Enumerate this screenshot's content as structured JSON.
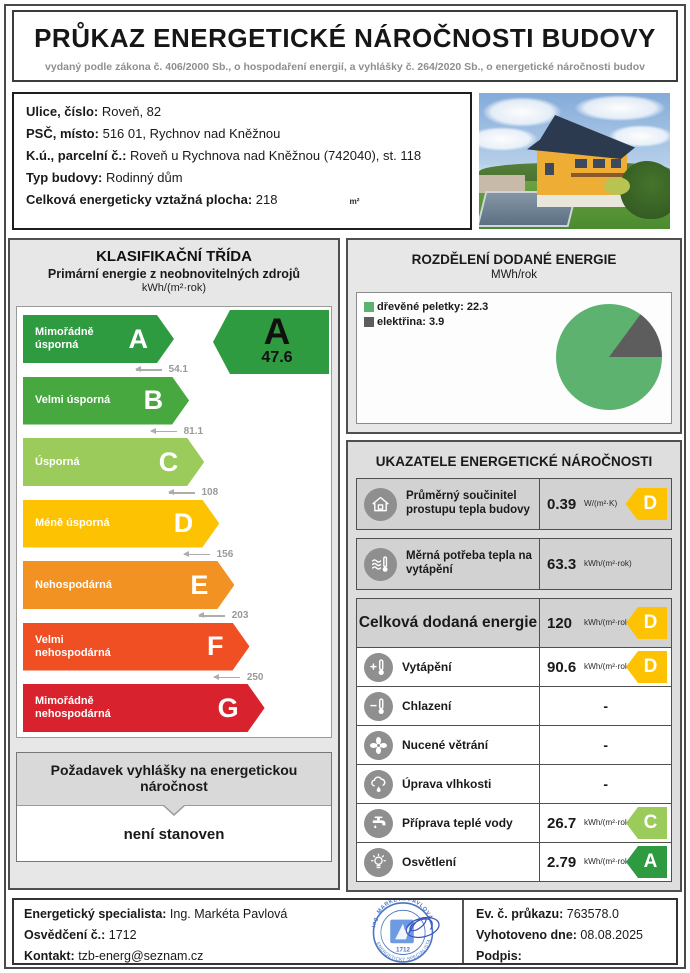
{
  "header": {
    "title": "PRŮKAZ ENERGETICKÉ NÁROČNOSTI BUDOVY",
    "subtitle": "vydaný podle zákona č. 406/2000 Sb., o hospodaření energií, a vyhlášky č. 264/2020 Sb., o energetické náročnosti budov"
  },
  "building": {
    "street_label": "Ulice, číslo:",
    "street_value": "Roveň, 82",
    "city_label": "PSČ, místo:",
    "city_value": "516 01, Rychnov nad Kněžnou",
    "parcel_label": "K.ú., parcelní č.:",
    "parcel_value": "Roveň u Rychnova nad Kněžnou (742040), st. 118",
    "type_label": "Typ budovy:",
    "type_value": "Rodinný dům",
    "area_label": "Celková energeticky vztažná plocha:",
    "area_value": "218",
    "area_unit": "m²"
  },
  "classification": {
    "title": "KLASIFIKAČNÍ TŘÍDA",
    "subtitle": "Primární energie z neobnovitelných zdrojů",
    "unit": "kWh/(m²·rok)",
    "rating": {
      "letter": "A",
      "value": "47.6",
      "color": "#2e9b41"
    },
    "bands": [
      {
        "letter": "A",
        "label": "Mimořádně úsporná",
        "threshold": "54.1",
        "color": "#2e9b41",
        "width_pct": 50
      },
      {
        "letter": "B",
        "label": "Velmi úsporná",
        "threshold": "81.1",
        "color": "#46a83e",
        "width_pct": 55
      },
      {
        "letter": "C",
        "label": "Úsporná",
        "threshold": "108",
        "color": "#9bcb5a",
        "width_pct": 60
      },
      {
        "letter": "D",
        "label": "Méně úsporná",
        "threshold": "156",
        "color": "#fdc303",
        "width_pct": 65
      },
      {
        "letter": "E",
        "label": "Nehospodárná",
        "threshold": "203",
        "color": "#f29222",
        "width_pct": 70
      },
      {
        "letter": "F",
        "label": "Velmi nehospodárná",
        "threshold": "250",
        "color": "#f04e23",
        "width_pct": 75
      },
      {
        "letter": "G",
        "label": "Mimořádně nehospodárná",
        "threshold": "",
        "color": "#d8232e",
        "width_pct": 80
      }
    ],
    "requirement_title": "Požadavek vyhlášky na energetickou náročnost",
    "requirement_value": "není stanoven"
  },
  "chart_data": {
    "type": "pie",
    "title": "ROZDĚLENÍ DODANÉ ENERGIE",
    "unit": "MWh/rok",
    "slices": [
      {
        "label": "dřevěné peletky",
        "value": 22.3,
        "color": "#5cb26e"
      },
      {
        "label": "elektřina",
        "value": 3.9,
        "color": "#5d5d5d"
      }
    ],
    "legend_position": "top-left",
    "start_angle_deg": 90
  },
  "indicators": {
    "title": "UKAZATELE ENERGETICKÉ NÁROČNOSTI",
    "rows": [
      {
        "icon": "house-icon",
        "label": "Průměrný součinitel prostupu tepla budovy",
        "value": "0.39",
        "unit": "W/(m²·K)",
        "class": "D",
        "class_color": "#fdc303"
      },
      {
        "icon": "heat-waves-icon",
        "label": "Měrná potřeba tepla na vytápění",
        "value": "63.3",
        "unit": "kWh/(m²·rok)",
        "class": null,
        "class_color": null
      }
    ],
    "total_row": {
      "label": "Celková dodaná energie",
      "value": "120",
      "unit": "kWh/(m²·rok)",
      "class": "D",
      "class_color": "#fdc303"
    },
    "sub_rows": [
      {
        "icon": "thermometer-plus-icon",
        "label": "Vytápění",
        "value": "90.6",
        "unit": "kWh/(m²·rok)",
        "class": "D",
        "class_color": "#fdc303"
      },
      {
        "icon": "thermometer-minus-icon",
        "label": "Chlazení",
        "value": "-",
        "unit": "",
        "class": null,
        "class_color": null
      },
      {
        "icon": "fan-icon",
        "label": "Nucené větrání",
        "value": "-",
        "unit": "",
        "class": null,
        "class_color": null
      },
      {
        "icon": "humidity-icon",
        "label": "Úprava vlhkosti",
        "value": "-",
        "unit": "",
        "class": null,
        "class_color": null
      },
      {
        "icon": "faucet-icon",
        "label": "Příprava teplé vody",
        "value": "26.7",
        "unit": "kWh/(m²·rok)",
        "class": "C",
        "class_color": "#9bcb5a"
      },
      {
        "icon": "bulb-icon",
        "label": "Osvětlení",
        "value": "2.79",
        "unit": "kWh/(m²·rok)",
        "class": "A",
        "class_color": "#2e9b41"
      }
    ]
  },
  "footer": {
    "specialist_label": "Energetický specialista:",
    "specialist_value": "Ing. Markéta Pavlová",
    "certificate_label": "Osvědčení č.:",
    "certificate_value": "1712",
    "contact_label": "Kontakt:",
    "contact_value": "tzb-energ@seznam.cz",
    "ev_label": "Ev. č. průkazu:",
    "ev_value": "763578.0",
    "date_label": "Vyhotoveno dne:",
    "date_value": "08.08.2025",
    "signature_label": "Podpis:",
    "stamp": {
      "name_text": "Ing. MARKÉTA PAVLOVÁ",
      "number": "1712",
      "bottom_text": "ENERGETICKÝ SPECIALISTA"
    }
  }
}
